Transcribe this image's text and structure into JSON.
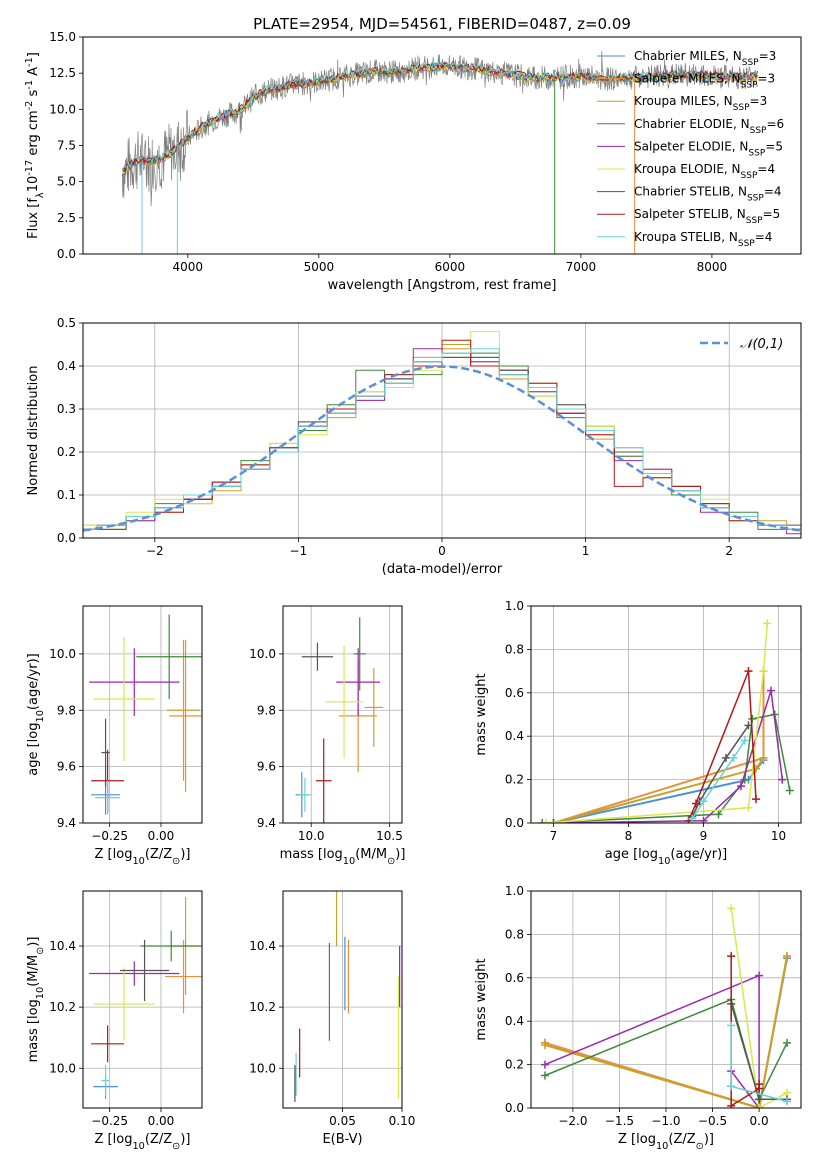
{
  "figure_title": "PLATE=2954, MJD=54561, FIBERID=0487, z=0.09",
  "colors": {
    "chabrier_miles": "#4a90d9",
    "salpeter_miles": "#e8903a",
    "kroupa_miles": "#c9a227",
    "chabrier_elodie": "#3c8a3c",
    "salpeter_elodie": "#9a28b0",
    "kroupa_elodie": "#d8e84c",
    "chabrier_stelib": "#555555",
    "salpeter_stelib": "#b01818",
    "kroupa_stelib": "#6ad0d8",
    "observed_spectrum": "#7f7f7f",
    "normal_curve": "#5b8fd6"
  },
  "chart_data": [
    {
      "type": "line",
      "panel": "spectrum",
      "xlabel": "wavelength [Angstrom, rest frame]",
      "ylabel": "Flux [f$_\\lambda$10$^{-17}$ erg cm$^{-2}$ s$^{-1}$ A$^{-1}$]",
      "xlim": [
        3200,
        8680
      ],
      "ylim": [
        0,
        15
      ],
      "xticks": [
        4000,
        5000,
        6000,
        7000,
        8000
      ],
      "yticks": [
        "0.0",
        "2.5",
        "5.0",
        "7.5",
        "10.0",
        "12.5",
        "15.0"
      ],
      "legend_position": "top-right",
      "grid": false,
      "continuum": {
        "x": [
          3500,
          3600,
          3700,
          3800,
          3900,
          4000,
          4100,
          4200,
          4300,
          4400,
          4500,
          4600,
          4800,
          5000,
          5200,
          5400,
          5600,
          5800,
          6000,
          6200,
          6400,
          6600,
          6800,
          7000,
          7200,
          7400,
          7600,
          7800,
          8000,
          8200,
          8350
        ],
        "y": [
          5.6,
          6.5,
          6.4,
          6.6,
          7.2,
          8.0,
          8.7,
          9.3,
          9.6,
          9.9,
          10.8,
          11.3,
          11.7,
          11.9,
          12.3,
          12.6,
          12.6,
          12.9,
          13.0,
          12.8,
          12.5,
          12.2,
          12.2,
          12.3,
          12.1,
          12.2,
          12.3,
          12.4,
          12.3,
          12.2,
          12.3
        ]
      },
      "series": [
        {
          "name": "Chabrier MILES, N$_{SSP}$=3"
        },
        {
          "name": "Salpeter MILES, N$_{SSP}$=3"
        },
        {
          "name": "Kroupa MILES, N$_{SSP}$=3"
        },
        {
          "name": "Chabrier ELODIE, N$_{SSP}$=6"
        },
        {
          "name": "Salpeter ELODIE, N$_{SSP}$=5"
        },
        {
          "name": "Kroupa ELODIE, N$_{SSP}$=4"
        },
        {
          "name": "Chabrier STELIB, N$_{SSP}$=4"
        },
        {
          "name": "Salpeter STELIB, N$_{SSP}$=5"
        },
        {
          "name": "Kroupa STELIB, N$_{SSP}$=4"
        }
      ]
    },
    {
      "type": "line",
      "panel": "residual-distribution",
      "xlabel": "(data-model)/error",
      "ylabel": "Normed distribution",
      "xlim": [
        -2.5,
        2.5
      ],
      "ylim": [
        0,
        0.5
      ],
      "xticks": [
        "−2",
        "−1",
        "0",
        "1",
        "2"
      ],
      "yticks": [
        "0.0",
        "0.1",
        "0.2",
        "0.3",
        "0.4",
        "0.5"
      ],
      "grid": true,
      "legend_position": "top-right",
      "legend": "$\\mathcal{N}(0,1)$",
      "bin_edges": [
        -2.6,
        -2.4,
        -2.2,
        -2.0,
        -1.8,
        -1.6,
        -1.4,
        -1.2,
        -1.0,
        -0.8,
        -0.6,
        -0.4,
        -0.2,
        0.0,
        0.2,
        0.4,
        0.6,
        0.8,
        1.0,
        1.2,
        1.4,
        1.6,
        1.8,
        2.0,
        2.2,
        2.4,
        2.6
      ],
      "histograms": [
        [
          0.02,
          0.03,
          0.05,
          0.07,
          0.09,
          0.12,
          0.17,
          0.21,
          0.26,
          0.29,
          0.33,
          0.37,
          0.41,
          0.43,
          0.42,
          0.39,
          0.35,
          0.3,
          0.25,
          0.2,
          0.15,
          0.11,
          0.08,
          0.05,
          0.03,
          0.02
        ],
        [
          0.02,
          0.02,
          0.05,
          0.06,
          0.09,
          0.13,
          0.16,
          0.22,
          0.25,
          0.3,
          0.34,
          0.36,
          0.42,
          0.44,
          0.4,
          0.38,
          0.36,
          0.29,
          0.24,
          0.19,
          0.16,
          0.1,
          0.07,
          0.05,
          0.03,
          0.02
        ],
        [
          0.03,
          0.02,
          0.04,
          0.07,
          0.1,
          0.11,
          0.17,
          0.2,
          0.27,
          0.28,
          0.32,
          0.38,
          0.4,
          0.45,
          0.41,
          0.37,
          0.34,
          0.31,
          0.23,
          0.21,
          0.14,
          0.12,
          0.08,
          0.04,
          0.04,
          0.02
        ],
        [
          0.02,
          0.03,
          0.05,
          0.08,
          0.08,
          0.12,
          0.18,
          0.2,
          0.25,
          0.31,
          0.39,
          0.36,
          0.38,
          0.42,
          0.43,
          0.4,
          0.33,
          0.28,
          0.26,
          0.19,
          0.15,
          0.1,
          0.07,
          0.06,
          0.02,
          0.02
        ],
        [
          0.02,
          0.03,
          0.04,
          0.07,
          0.09,
          0.13,
          0.16,
          0.21,
          0.26,
          0.3,
          0.32,
          0.37,
          0.44,
          0.43,
          0.41,
          0.39,
          0.34,
          0.29,
          0.25,
          0.18,
          0.16,
          0.11,
          0.06,
          0.05,
          0.03,
          0.01
        ],
        [
          0.03,
          0.03,
          0.06,
          0.09,
          0.08,
          0.12,
          0.17,
          0.22,
          0.24,
          0.29,
          0.34,
          0.35,
          0.39,
          0.43,
          0.48,
          0.38,
          0.33,
          0.3,
          0.26,
          0.2,
          0.14,
          0.11,
          0.09,
          0.05,
          0.03,
          0.02
        ],
        [
          0.02,
          0.02,
          0.05,
          0.07,
          0.09,
          0.12,
          0.16,
          0.21,
          0.27,
          0.29,
          0.33,
          0.37,
          0.41,
          0.42,
          0.42,
          0.39,
          0.35,
          0.31,
          0.25,
          0.2,
          0.15,
          0.12,
          0.07,
          0.05,
          0.03,
          0.03
        ],
        [
          0.02,
          0.03,
          0.05,
          0.06,
          0.09,
          0.13,
          0.17,
          0.2,
          0.26,
          0.3,
          0.33,
          0.38,
          0.4,
          0.46,
          0.4,
          0.38,
          0.36,
          0.29,
          0.24,
          0.12,
          0.14,
          0.12,
          0.08,
          0.04,
          0.03,
          0.02
        ],
        [
          0.02,
          0.03,
          0.05,
          0.07,
          0.1,
          0.12,
          0.16,
          0.2,
          0.26,
          0.29,
          0.33,
          0.36,
          0.41,
          0.43,
          0.44,
          0.38,
          0.35,
          0.3,
          0.25,
          0.21,
          0.15,
          0.11,
          0.07,
          0.05,
          0.03,
          0.02
        ]
      ]
    },
    {
      "type": "scatter",
      "panel": "age-vs-Z",
      "xlabel": "Z [log$_{10}$(Z/Z$_\\odot$)]",
      "ylabel": "age  [log$_{10}$(age/yr)]",
      "xlim": [
        -0.38,
        0.2
      ],
      "ylim": [
        9.4,
        10.17
      ],
      "xticks": [
        "−0.25",
        "0.00"
      ],
      "yticks": [
        "9.4",
        "9.6",
        "9.8",
        "10.0"
      ],
      "grid": true,
      "points": [
        {
          "x": -0.27,
          "y": 9.5,
          "xerr": 0.07,
          "yerr": 0.07
        },
        {
          "x": 0.12,
          "y": 9.78,
          "xerr": 0.08,
          "yerr": 0.27
        },
        {
          "x": 0.11,
          "y": 9.8,
          "xerr": 0.08,
          "yerr": 0.25
        },
        {
          "x": 0.04,
          "y": 9.99,
          "xerr": 0.16,
          "yerr": 0.15
        },
        {
          "x": -0.13,
          "y": 9.9,
          "xerr": 0.22,
          "yerr": 0.12
        },
        {
          "x": -0.18,
          "y": 9.84,
          "xerr": 0.15,
          "yerr": 0.22
        },
        {
          "x": -0.27,
          "y": 9.65,
          "xerr": 0.02,
          "yerr": 0.12
        },
        {
          "x": -0.26,
          "y": 9.55,
          "xerr": 0.08,
          "yerr": 0.11
        },
        {
          "x": -0.26,
          "y": 9.49,
          "xerr": 0.06,
          "yerr": 0.06
        }
      ]
    },
    {
      "type": "scatter",
      "panel": "age-vs-mass",
      "xlabel": "mass [log$_{10}$(M/M$_\\odot$)]",
      "ylabel": "",
      "xlim": [
        9.82,
        10.58
      ],
      "ylim": [
        9.4,
        10.17
      ],
      "xticks": [
        "10.0",
        "10.5"
      ],
      "yticks": [
        "9.4",
        "9.6",
        "9.8",
        "10.0"
      ],
      "grid": true,
      "points": [
        {
          "x": 9.94,
          "y": 9.5,
          "xerr": 0.04,
          "yerr": 0.08
        },
        {
          "x": 10.3,
          "y": 9.78,
          "xerr": 0.12,
          "yerr": 0.2
        },
        {
          "x": 10.4,
          "y": 9.81,
          "xerr": 0.06,
          "yerr": 0.14
        },
        {
          "x": 10.31,
          "y": 10.0,
          "xerr": 0.04,
          "yerr": 0.13
        },
        {
          "x": 10.3,
          "y": 9.9,
          "xerr": 0.14,
          "yerr": 0.12
        },
        {
          "x": 10.21,
          "y": 9.83,
          "xerr": 0.12,
          "yerr": 0.2
        },
        {
          "x": 10.04,
          "y": 9.99,
          "xerr": 0.1,
          "yerr": 0.05
        },
        {
          "x": 10.08,
          "y": 9.55,
          "xerr": 0.05,
          "yerr": 0.15
        },
        {
          "x": 9.96,
          "y": 9.5,
          "xerr": 0.04,
          "yerr": 0.06
        }
      ]
    },
    {
      "type": "line",
      "panel": "mass-weight-vs-age",
      "xlabel": "age  [log$_{10}$(age/yr)]",
      "ylabel": "mass weight",
      "xlim": [
        6.7,
        10.3
      ],
      "ylim": [
        0,
        1.0
      ],
      "xticks": [
        "7",
        "8",
        "9",
        "10"
      ],
      "yticks": [
        "0.0",
        "0.2",
        "0.4",
        "0.6",
        "0.8",
        "1.0"
      ],
      "grid": true,
      "series": [
        {
          "x": [
            7.0,
            9.6,
            9.8
          ],
          "y": [
            0.0,
            0.2,
            0.29
          ]
        },
        {
          "x": [
            7.0,
            9.8,
            9.8
          ],
          "y": [
            0.0,
            0.3,
            0.7
          ]
        },
        {
          "x": [
            7.0,
            9.7,
            9.8
          ],
          "y": [
            0.0,
            0.25,
            0.3
          ]
        },
        {
          "x": [
            6.85,
            9.2,
            9.55,
            9.65,
            9.95,
            10.15
          ],
          "y": [
            0.0,
            0.04,
            0.2,
            0.48,
            0.5,
            0.15
          ]
        },
        {
          "x": [
            7.0,
            9.0,
            9.5,
            9.9,
            10.05
          ],
          "y": [
            0.0,
            0.01,
            0.17,
            0.61,
            0.2
          ]
        },
        {
          "x": [
            6.9,
            9.6,
            9.8,
            9.85
          ],
          "y": [
            0.0,
            0.07,
            0.7,
            0.92
          ]
        },
        {
          "x": [
            8.85,
            8.95,
            9.3,
            9.6
          ],
          "y": [
            0.03,
            0.1,
            0.3,
            0.45
          ]
        },
        {
          "x": [
            8.8,
            8.9,
            9.6,
            9.7
          ],
          "y": [
            0.01,
            0.09,
            0.7,
            0.11
          ]
        },
        {
          "x": [
            8.85,
            9.0,
            9.4,
            9.55
          ],
          "y": [
            0.02,
            0.1,
            0.3,
            0.38
          ]
        }
      ]
    },
    {
      "type": "scatter",
      "panel": "mass-vs-Z",
      "xlabel": "Z [log$_{10}$(Z/Z$_\\odot$)]",
      "ylabel": "mass [log$_{10}$(M/M$_\\odot$)]",
      "xlim": [
        -0.38,
        0.2
      ],
      "ylim": [
        9.87,
        10.58
      ],
      "xticks": [
        "−0.25",
        "0.00"
      ],
      "yticks": [
        "10.0",
        "10.2",
        "10.4"
      ],
      "grid": true,
      "points": [
        {
          "x": -0.27,
          "y": 9.94,
          "xerr": 0.06,
          "yerr": 0.04
        },
        {
          "x": 0.11,
          "y": 10.3,
          "xerr": 0.09,
          "yerr": 0.12
        },
        {
          "x": 0.12,
          "y": 10.4,
          "xerr": 0.08,
          "yerr": 0.16
        },
        {
          "x": 0.05,
          "y": 10.4,
          "xerr": 0.15,
          "yerr": 0.05
        },
        {
          "x": -0.13,
          "y": 10.31,
          "xerr": 0.22,
          "yerr": 0.04
        },
        {
          "x": -0.18,
          "y": 10.21,
          "xerr": 0.15,
          "yerr": 0.12
        },
        {
          "x": -0.08,
          "y": 10.32,
          "xerr": 0.12,
          "yerr": 0.1
        },
        {
          "x": -0.26,
          "y": 10.08,
          "xerr": 0.08,
          "yerr": 0.06
        },
        {
          "x": -0.27,
          "y": 9.96,
          "xerr": 0.02,
          "yerr": 0.05
        }
      ]
    },
    {
      "type": "scatter",
      "panel": "mass-vs-ebv",
      "xlabel": "E(B-V)",
      "ylabel": "",
      "xlim": [
        0.0,
        0.1
      ],
      "ylim": [
        9.87,
        10.58
      ],
      "xticks": [
        "0.05",
        "0.10"
      ],
      "yticks": [
        "10.0",
        "10.2",
        "10.4"
      ],
      "grid": true,
      "points": [
        {
          "x": 0.052,
          "y": 10.31,
          "yerr": 0.12
        },
        {
          "x": 0.055,
          "y": 10.3,
          "yerr": 0.12
        },
        {
          "x": 0.045,
          "y": 10.5,
          "yerr": 0.1
        },
        {
          "x": 0.039,
          "y": 10.25,
          "yerr": 0.16
        },
        {
          "x": 0.098,
          "y": 10.3,
          "yerr": 0.1
        },
        {
          "x": 0.097,
          "y": 10.1,
          "yerr": 0.2
        },
        {
          "x": 0.01,
          "y": 9.95,
          "yerr": 0.06
        },
        {
          "x": 0.014,
          "y": 10.05,
          "yerr": 0.08
        },
        {
          "x": 0.011,
          "y": 9.98,
          "yerr": 0.07
        }
      ]
    },
    {
      "type": "line",
      "panel": "mass-weight-vs-Z",
      "xlabel": "Z [log$_{10}$(Z/Z$_\\odot$)]",
      "ylabel": "mass weight",
      "xlim": [
        -2.45,
        0.45
      ],
      "ylim": [
        0,
        1.0
      ],
      "xticks": [
        "−2.0",
        "−1.5",
        "−1.0",
        "−0.5",
        "0.0"
      ],
      "yticks": [
        "0.0",
        "0.2",
        "0.4",
        "0.6",
        "0.8",
        "1.0"
      ],
      "grid": true,
      "series": [
        {
          "x": [
            -2.3,
            0.0,
            0.3
          ],
          "y": [
            0.3,
            0.0,
            0.69
          ]
        },
        {
          "x": [
            -2.3,
            0.0,
            0.3
          ],
          "y": [
            0.3,
            0.0,
            0.7
          ]
        },
        {
          "x": [
            -2.3,
            0.0,
            0.3
          ],
          "y": [
            0.29,
            0.0,
            0.7
          ]
        },
        {
          "x": [
            -2.3,
            -0.3,
            0.0,
            0.3
          ],
          "y": [
            0.15,
            0.5,
            0.04,
            0.3
          ]
        },
        {
          "x": [
            -2.3,
            0.0,
            0.0,
            -0.3
          ],
          "y": [
            0.2,
            0.61,
            0.0,
            0.17
          ]
        },
        {
          "x": [
            -0.3,
            0.0,
            0.3
          ],
          "y": [
            0.92,
            0.0,
            0.07
          ]
        },
        {
          "x": [
            -0.3,
            -0.3,
            0.0,
            0.3
          ],
          "y": [
            0.1,
            0.48,
            0.04,
            0.04
          ]
        },
        {
          "x": [
            -0.3,
            -0.3,
            0.0,
            0.0
          ],
          "y": [
            0.7,
            0.01,
            0.09,
            0.11
          ]
        },
        {
          "x": [
            -0.3,
            -0.3,
            0.3
          ],
          "y": [
            0.38,
            0.1,
            0.03
          ]
        }
      ]
    }
  ]
}
